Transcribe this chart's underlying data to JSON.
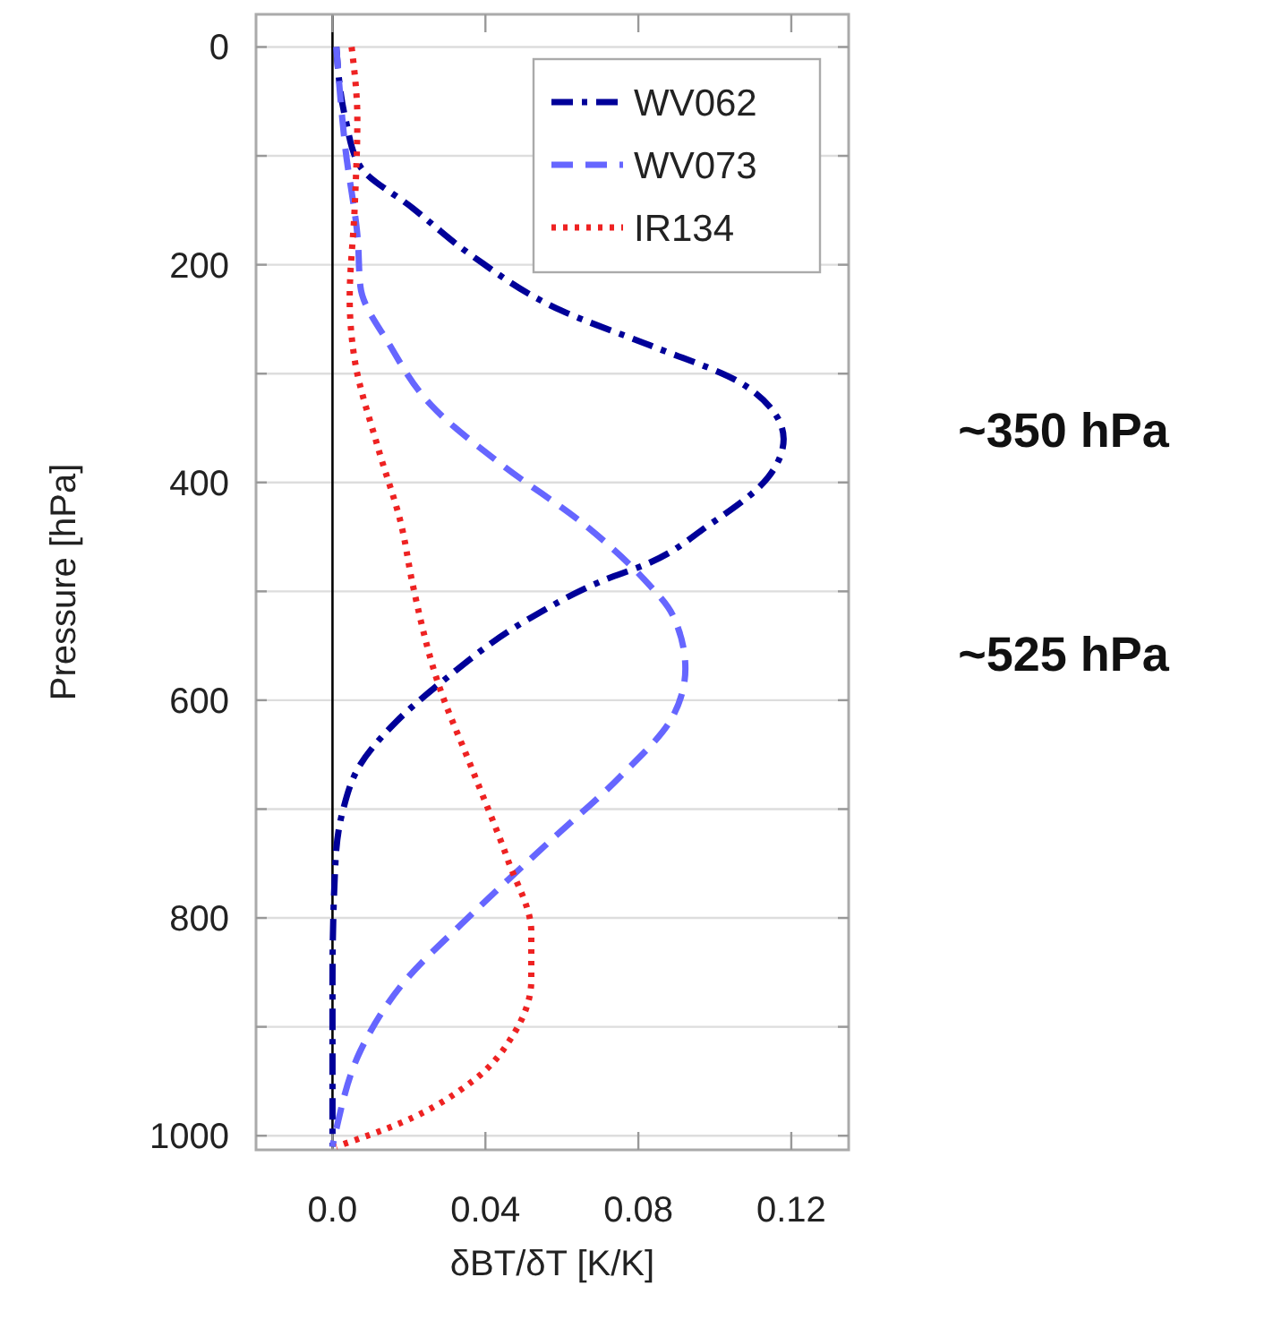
{
  "chart_data": {
    "type": "line",
    "xlabel": "δBT/δT  [K/K]",
    "ylabel": "Pressure [hPa]",
    "xlim": [
      -0.02,
      0.135
    ],
    "ylim": [
      1013,
      -30
    ],
    "xticks": [
      {
        "value": 0,
        "label": "0.0"
      },
      0.04,
      0.08,
      0.12
    ],
    "yticks": [
      0,
      {
        "value": 100,
        "label": null
      },
      200,
      {
        "value": 300,
        "label": null
      },
      400,
      {
        "value": 500,
        "label": null
      },
      600,
      {
        "value": 700,
        "label": null
      },
      800,
      {
        "value": 900,
        "label": null
      },
      1000
    ],
    "grid": "y",
    "legend": "top right",
    "ref_lines": [
      {
        "axis": "x",
        "value": 0,
        "color": "#000000"
      }
    ],
    "annotations": [
      "~350 hPa",
      "~525 hPa"
    ],
    "series": [
      {
        "name": "WV062",
        "color": "#000099",
        "line_style": "dashdot",
        "x": [
          0.001,
          0.0034,
          0.0073,
          0.021,
          0.0366,
          0.0598,
          0.083,
          0.106,
          0.1154,
          0.118,
          0.114,
          0.0985,
          0.08,
          0.0737,
          0.052,
          0.029,
          0.0166,
          0.0073,
          0.0026,
          0.0008,
          0,
          0
        ],
        "values": [
          0,
          66,
          110,
          148,
          192,
          242,
          274,
          307,
          335,
          360,
          395,
          439,
          478,
          486,
          524,
          582,
          620,
          659,
          703,
          747,
          857,
          1010
        ]
      },
      {
        "name": "WV073",
        "color": "#6666ff",
        "line_style": "dashed",
        "x": [
          0.001,
          0.0034,
          0.0066,
          0.0073,
          0.015,
          0.0258,
          0.0444,
          0.066,
          0.0815,
          0.089,
          0.0923,
          0.089,
          0.0753,
          0.0567,
          0.0366,
          0.018,
          0.0073,
          0.001,
          0
        ],
        "values": [
          0,
          94,
          176,
          220,
          274,
          329,
          384,
          439,
          489,
          522,
          571,
          615,
          670,
          730,
          796,
          862,
          922,
          994,
          1010
        ]
      },
      {
        "name": "IR134",
        "color": "#ee2222",
        "line_style": "dotted",
        "x": [
          0.005,
          0.0065,
          0.0058,
          0.0045,
          0.0057,
          0.0119,
          0.018,
          0.021,
          0.0274,
          0.0366,
          0.0459,
          0.052,
          0.052,
          0.0475,
          0.0366,
          0.018,
          0.001
        ],
        "values": [
          0,
          66,
          148,
          231,
          285,
          368,
          439,
          494,
          582,
          664,
          747,
          813,
          857,
          906,
          950,
          988,
          1010
        ]
      }
    ]
  }
}
